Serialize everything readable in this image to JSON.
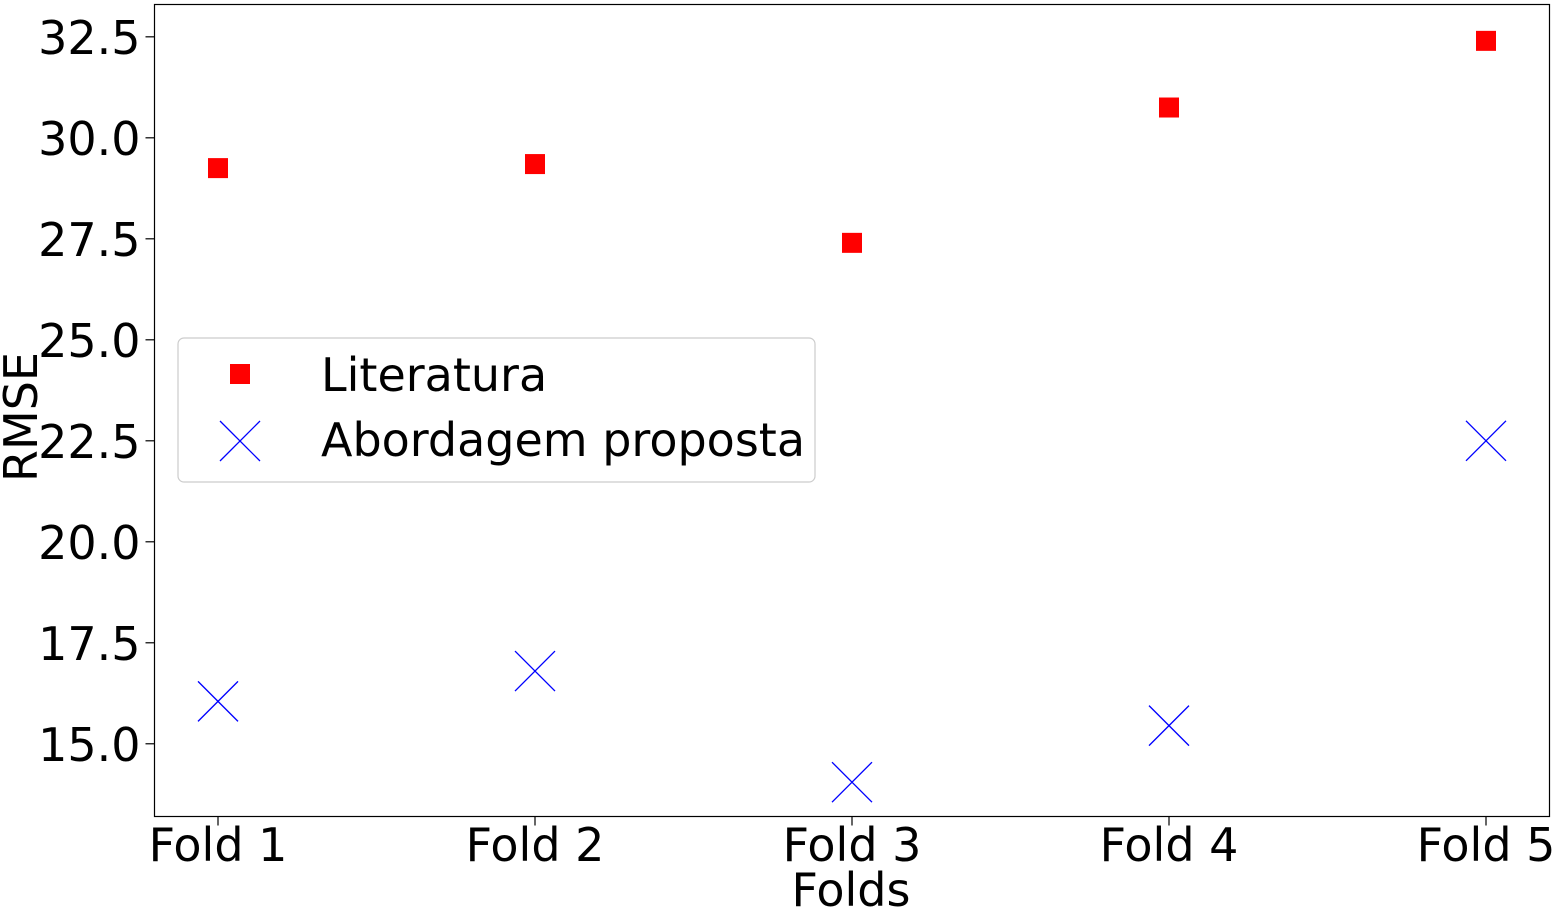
{
  "chart_data": {
    "type": "scatter",
    "title": "",
    "xlabel": "Folds",
    "ylabel": "RMSE",
    "categories": [
      "Fold 1",
      "Fold 2",
      "Fold 3",
      "Fold 4",
      "Fold 5"
    ],
    "ylim": [
      13.2,
      33.3
    ],
    "yticks": [
      15.0,
      17.5,
      20.0,
      22.5,
      25.0,
      27.5,
      30.0,
      32.5
    ],
    "ytick_labels": [
      "15.0",
      "17.5",
      "20.0",
      "22.5",
      "25.0",
      "27.5",
      "30.0",
      "32.5"
    ],
    "grid": false,
    "legend_position": "center-left",
    "series": [
      {
        "name": "Literatura",
        "marker": "square",
        "color": "#ff0000",
        "values": [
          29.25,
          29.35,
          27.4,
          30.75,
          32.4
        ]
      },
      {
        "name": "Abordagem proposta",
        "marker": "x",
        "color": "#0000ff",
        "values": [
          16.05,
          16.8,
          14.05,
          15.45,
          22.5
        ]
      }
    ]
  }
}
